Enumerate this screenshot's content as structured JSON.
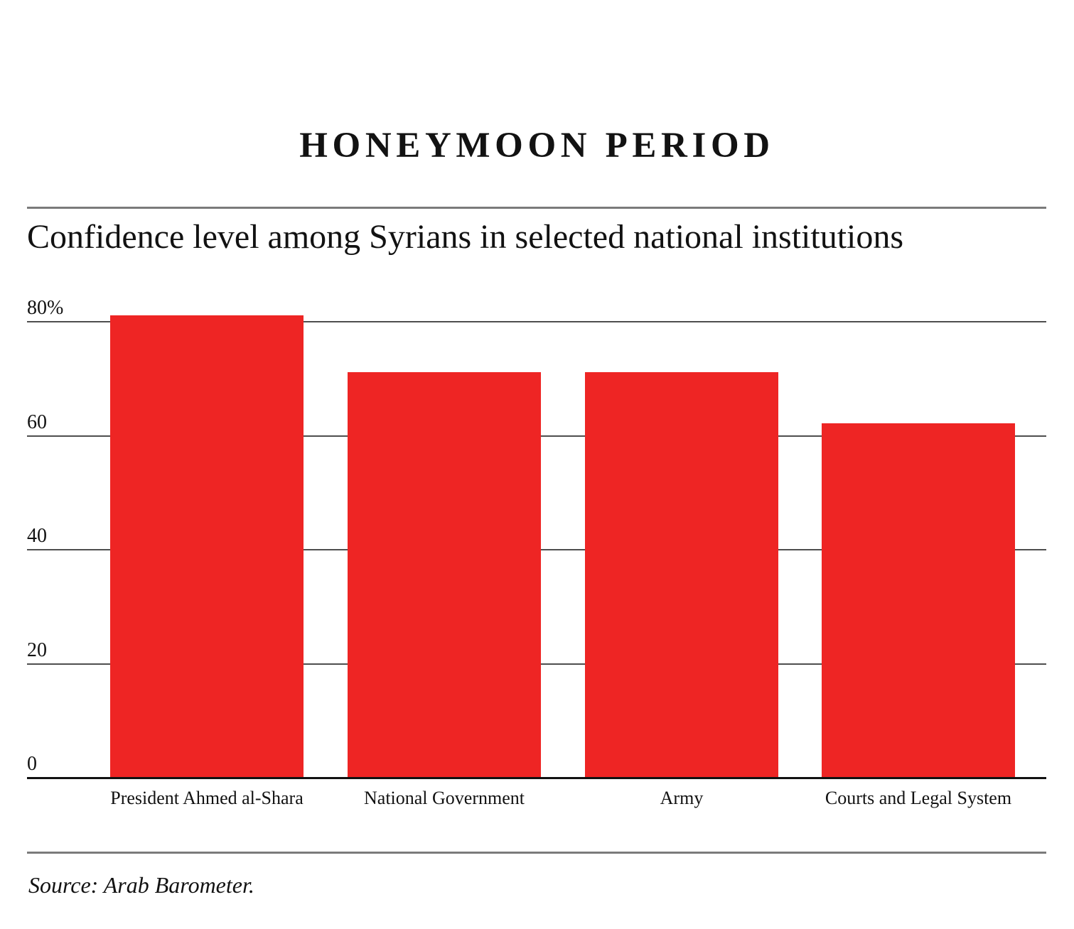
{
  "page": {
    "title": "HONEYMOON PERIOD",
    "subtitle": "Confidence level among Syrians in selected national institutions",
    "source": "Source: Arab Barometer."
  },
  "chart_data": {
    "type": "bar",
    "title": "HONEYMOON PERIOD",
    "subtitle": "Confidence level among Syrians in selected national institutions",
    "categories": [
      "President Ahmed al-Shara",
      "National Government",
      "Army",
      "Courts and Legal System"
    ],
    "values": [
      81,
      71,
      71,
      62
    ],
    "unit": "%",
    "xlabel": "",
    "ylabel": "",
    "ylim": [
      0,
      80
    ],
    "yticks": [
      0,
      20,
      40,
      60,
      80
    ],
    "ytick_labels": [
      "0",
      "20",
      "40",
      "60",
      "80%"
    ],
    "grid": true,
    "legend": false,
    "bar_color": "#ee2524",
    "source": "Source: Arab Barometer."
  }
}
